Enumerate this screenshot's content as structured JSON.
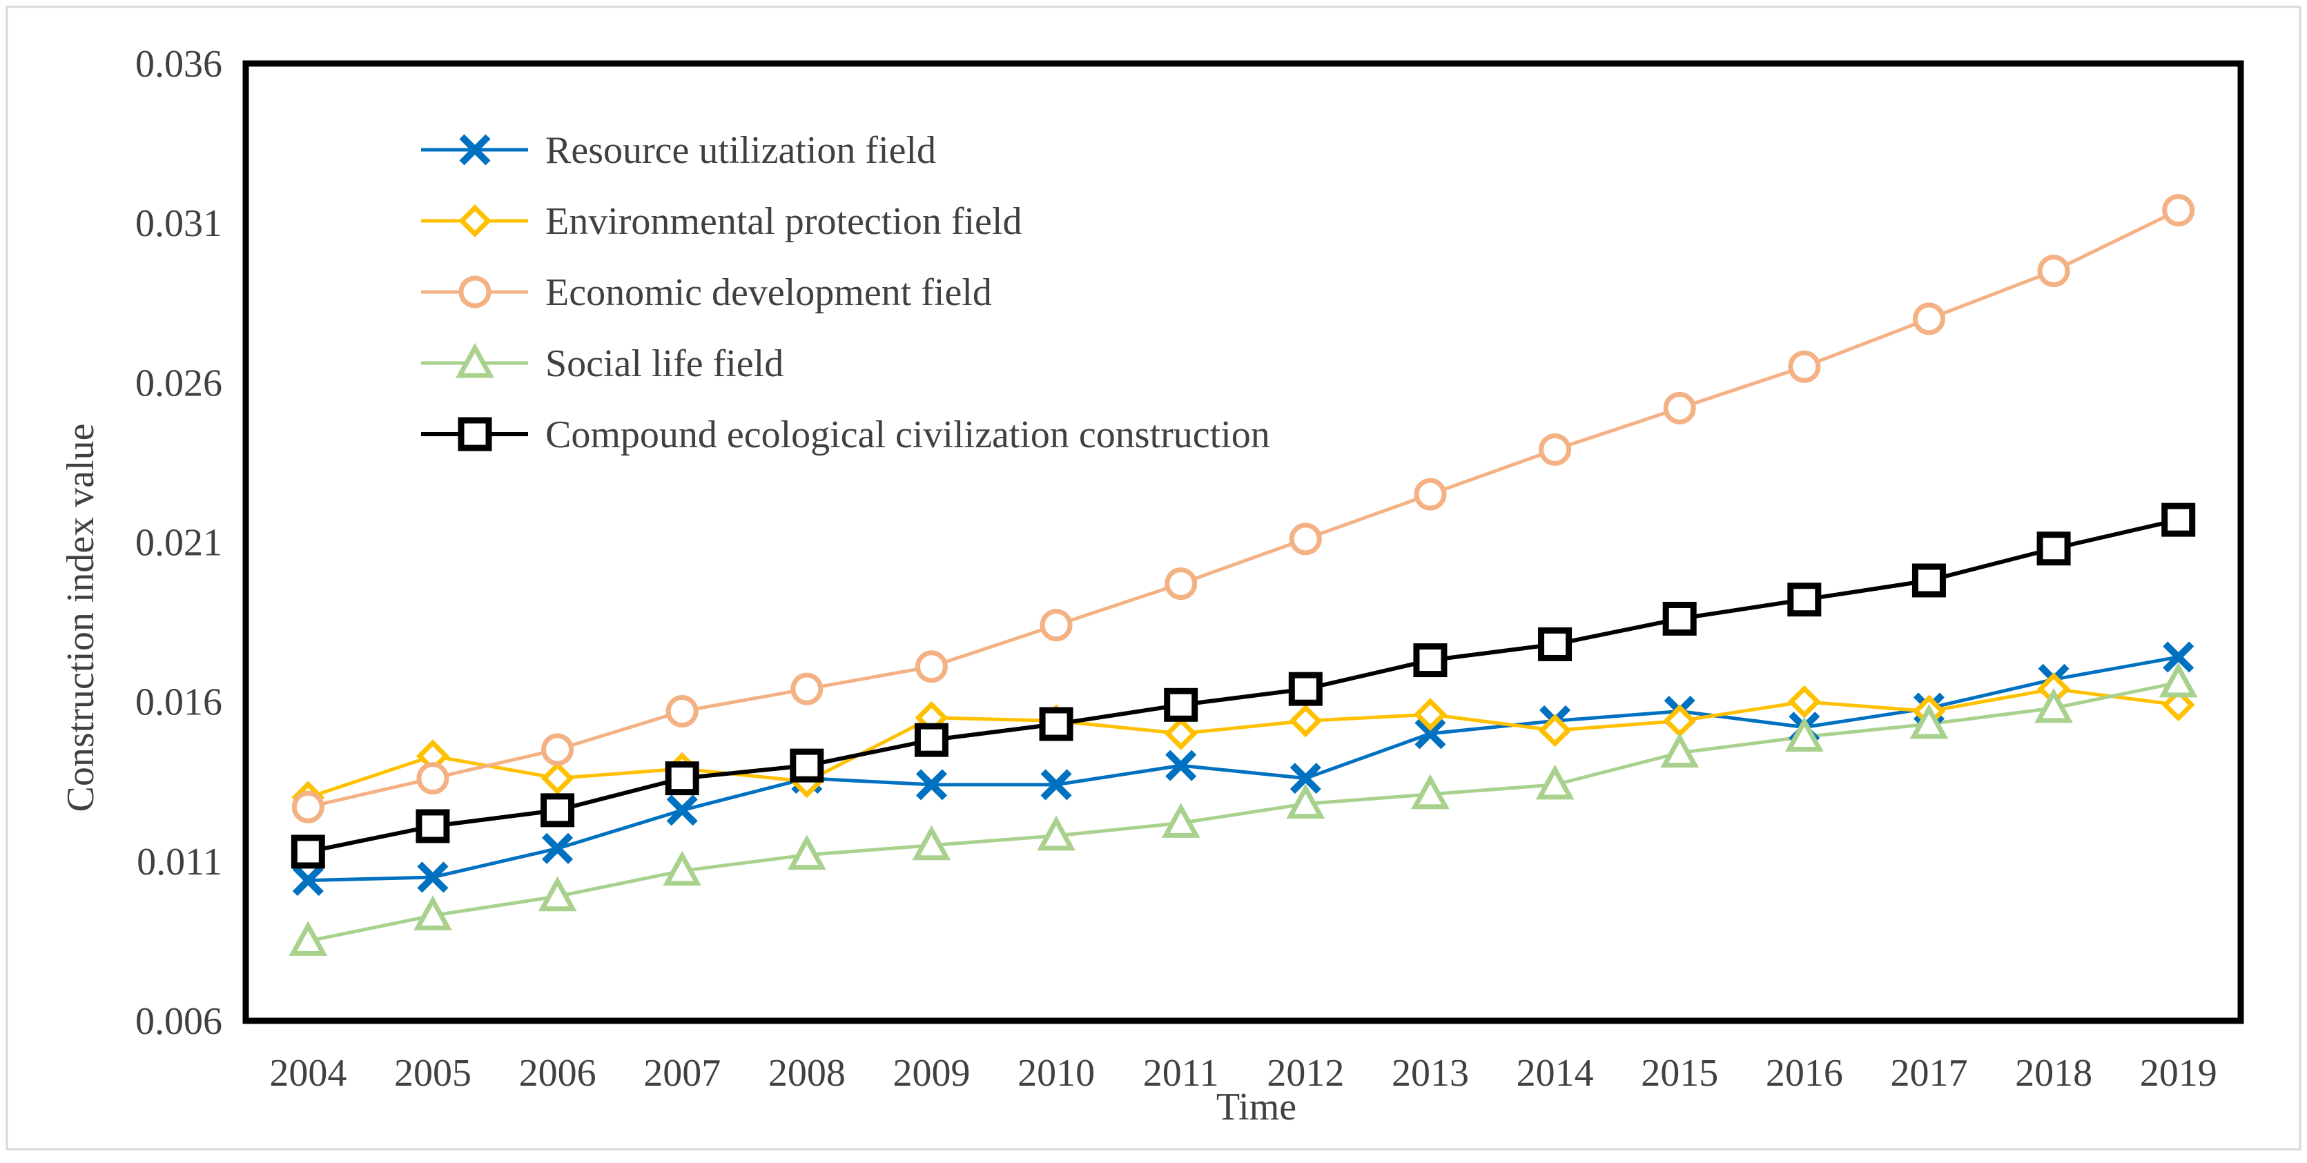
{
  "chart_data": {
    "type": "line",
    "title": "",
    "xlabel": "Time",
    "ylabel": "Construction index value",
    "x": [
      "2004",
      "2005",
      "2006",
      "2007",
      "2008",
      "2009",
      "2010",
      "2011",
      "2012",
      "2013",
      "2014",
      "2015",
      "2016",
      "2017",
      "2018",
      "2019"
    ],
    "ylim": [
      0.006,
      0.036
    ],
    "yticks": [
      "0.006",
      "0.011",
      "0.016",
      "0.021",
      "0.026",
      "0.031",
      "0.036"
    ],
    "grid": false,
    "legend_position": "top-left",
    "series": [
      {
        "name": "Resource utilization field",
        "color": "#0070C0",
        "marker": "x",
        "values": [
          0.0104,
          0.0105,
          0.0114,
          0.0126,
          0.0136,
          0.0134,
          0.0134,
          0.014,
          0.0136,
          0.015,
          0.0154,
          0.0157,
          0.0152,
          0.0158,
          0.0167,
          0.0174
        ]
      },
      {
        "name": "Environmental protection field",
        "color": "#FFC000",
        "marker": "diamond",
        "values": [
          0.013,
          0.0143,
          0.0136,
          0.0139,
          0.0135,
          0.0155,
          0.0154,
          0.015,
          0.0154,
          0.0156,
          0.0151,
          0.0154,
          0.016,
          0.0157,
          0.0164,
          0.0159
        ]
      },
      {
        "name": "Economic development field",
        "color": "#F4B183",
        "marker": "circle",
        "values": [
          0.0127,
          0.0136,
          0.0145,
          0.0157,
          0.0164,
          0.0171,
          0.0184,
          0.0197,
          0.0211,
          0.0225,
          0.0239,
          0.0252,
          0.0265,
          0.028,
          0.0295,
          0.0314
        ]
      },
      {
        "name": "Social life field",
        "color": "#A9D18E",
        "marker": "triangle",
        "values": [
          0.0085,
          0.0093,
          0.0099,
          0.0107,
          0.0112,
          0.0115,
          0.0118,
          0.0122,
          0.0128,
          0.0131,
          0.0134,
          0.0144,
          0.0149,
          0.0153,
          0.0158,
          0.0166
        ]
      },
      {
        "name": "Compound ecological civilization construction",
        "color": "#000000",
        "marker": "square",
        "values": [
          0.0113,
          0.0121,
          0.0126,
          0.0136,
          0.014,
          0.0148,
          0.0153,
          0.0159,
          0.0164,
          0.0173,
          0.0178,
          0.0186,
          0.0192,
          0.0198,
          0.0208,
          0.0217
        ]
      }
    ]
  }
}
